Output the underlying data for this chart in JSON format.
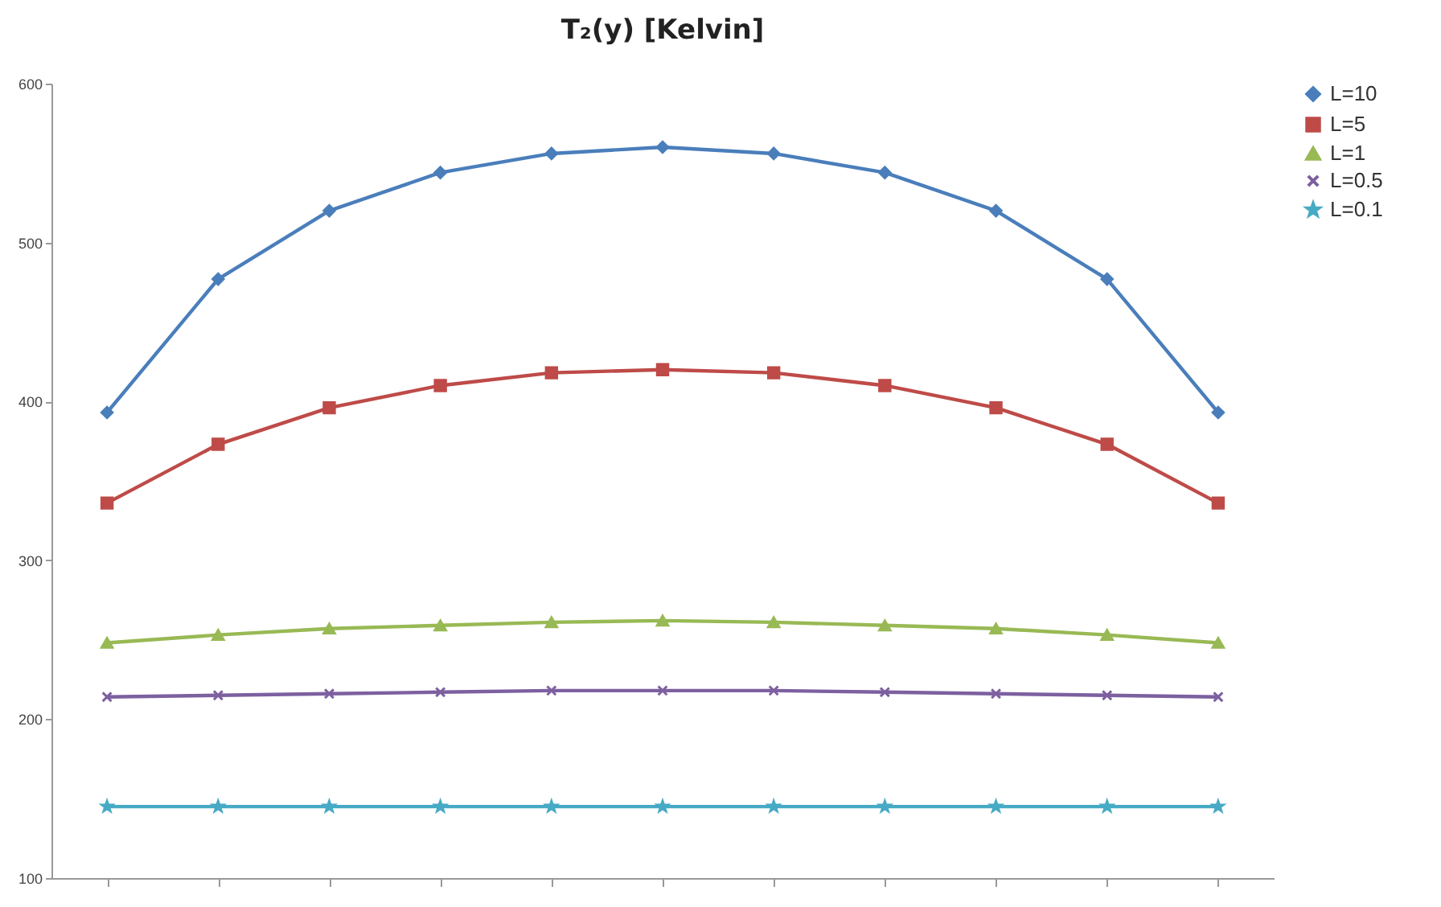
{
  "chart_data": {
    "type": "line",
    "title": "T₂(y) [Kelvin]",
    "categories": [
      null,
      null,
      null,
      null,
      null,
      null,
      null,
      null,
      null,
      null,
      null
    ],
    "series": [
      {
        "name": "L=10",
        "color": "#4a7ebb",
        "marker": "diamond",
        "values": [
          393,
          477,
          520,
          544,
          556,
          560,
          556,
          544,
          520,
          477,
          393
        ]
      },
      {
        "name": "L=5",
        "color": "#be4b48",
        "marker": "square",
        "values": [
          336,
          373,
          396,
          410,
          418,
          420,
          418,
          410,
          396,
          373,
          336
        ]
      },
      {
        "name": "L=1",
        "color": "#98b954",
        "marker": "triangle",
        "values": [
          248,
          253,
          257,
          259,
          261,
          262,
          261,
          259,
          257,
          253,
          248
        ]
      },
      {
        "name": "L=0.5",
        "color": "#7d60a0",
        "marker": "cross",
        "values": [
          214,
          215,
          216,
          217,
          218,
          218,
          218,
          217,
          216,
          215,
          214
        ]
      },
      {
        "name": "L=0.1",
        "color": "#46aac5",
        "marker": "star",
        "values": [
          145,
          145,
          145,
          145,
          145,
          145,
          145,
          145,
          145,
          145,
          145
        ]
      }
    ],
    "ylim": [
      100,
      600
    ],
    "yticks": [
      100,
      200,
      300,
      400,
      500,
      600
    ],
    "grid": false,
    "legend": "right",
    "tick_labels": "y"
  }
}
